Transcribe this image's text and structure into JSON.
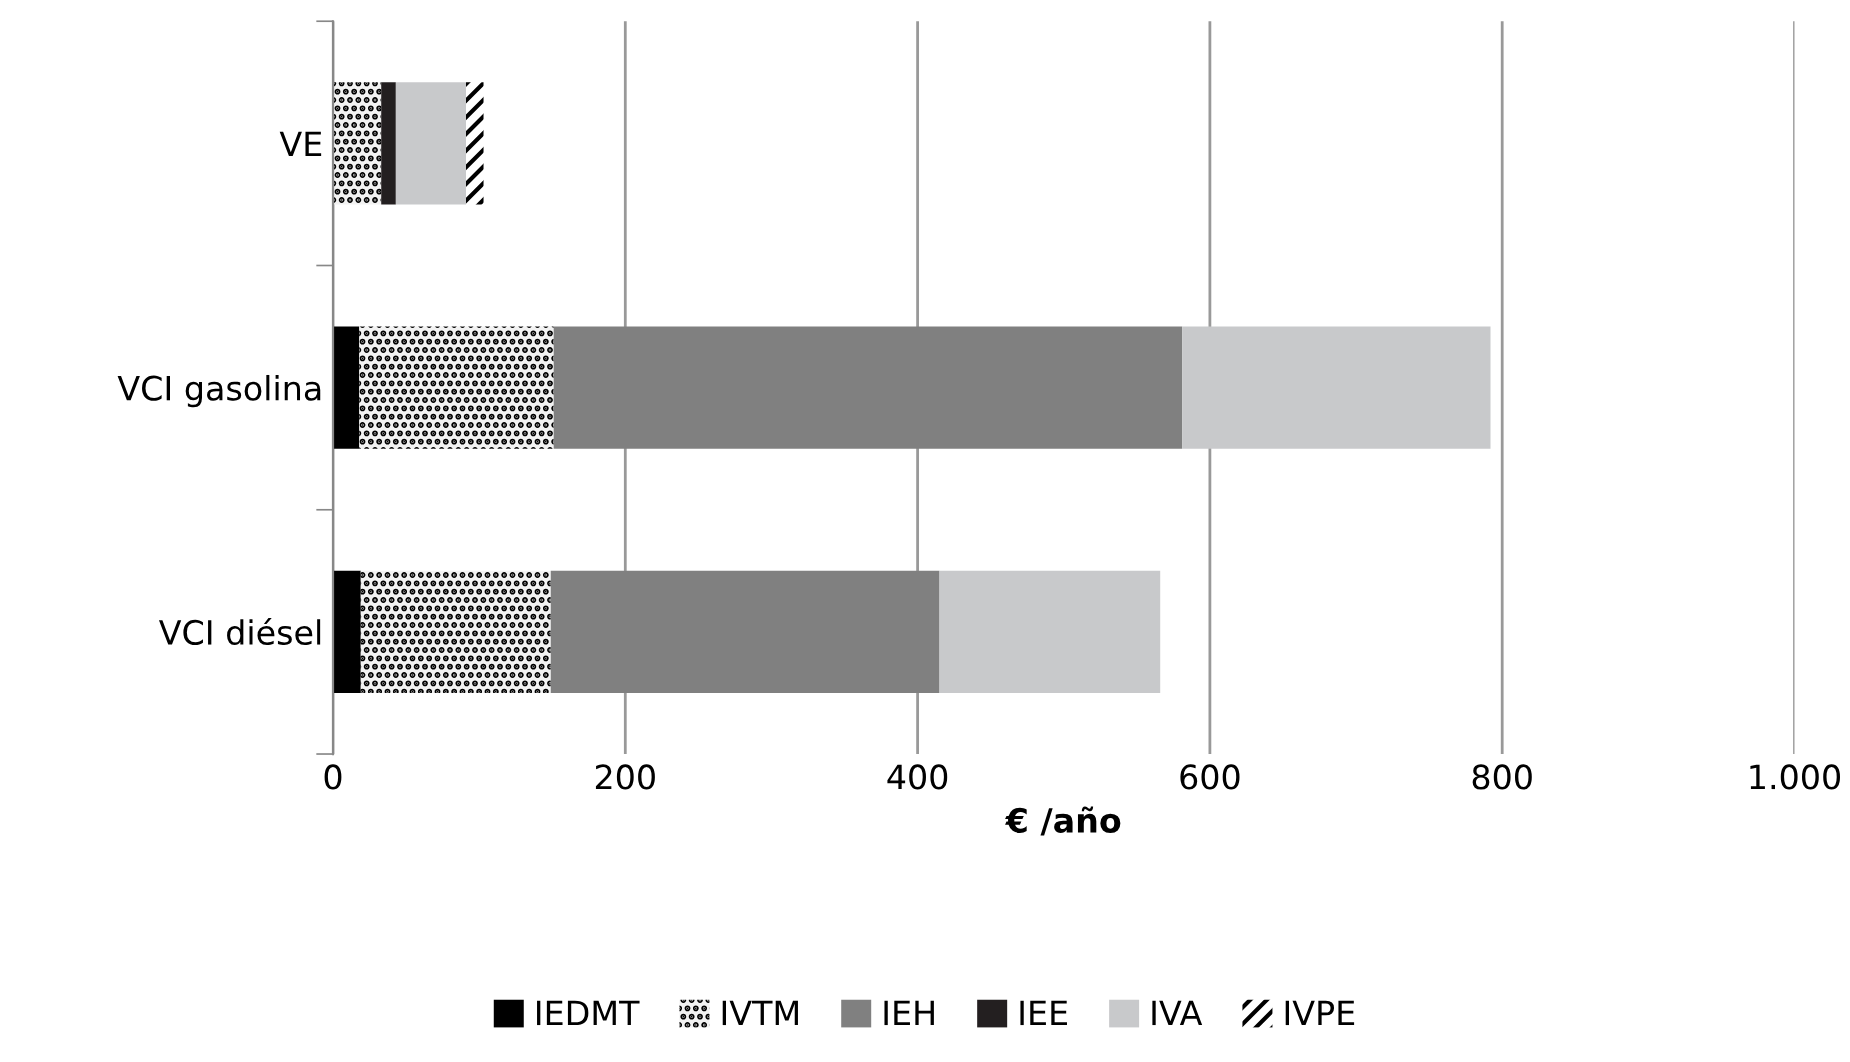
{
  "chart_data": {
    "type": "bar",
    "orientation": "horizontal",
    "stacked": true,
    "categories": [
      "VE",
      "VCI gasolina",
      "VCI diésel"
    ],
    "series": [
      {
        "name": "IEDMT",
        "color": "#000000",
        "values": [
          0,
          18,
          19
        ]
      },
      {
        "name": "IVTM",
        "color": "#f2f2f2",
        "values": [
          33,
          133,
          130
        ]
      },
      {
        "name": "IEH",
        "color": "#808080",
        "values": [
          0,
          430,
          266
        ]
      },
      {
        "name": "IEE",
        "color": "#231f20",
        "values": [
          10,
          0,
          0
        ]
      },
      {
        "name": "IVA",
        "color": "#c8c9cb",
        "values": [
          48,
          211,
          151
        ]
      },
      {
        "name": "IVPE",
        "color": "#ffffff",
        "values": [
          12,
          0,
          0
        ]
      }
    ],
    "xlabel": "€ /año",
    "xlim": [
      0,
      1000
    ],
    "xticks": [
      0,
      200,
      400,
      600,
      800,
      {
        "value": 1000,
        "label": "1.000"
      }
    ],
    "grid": "x",
    "legend": "bottom"
  }
}
